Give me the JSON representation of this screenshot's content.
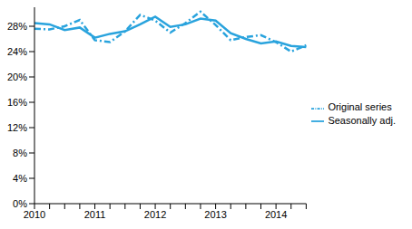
{
  "chart_data": {
    "type": "line",
    "categories": [
      "2010",
      null,
      null,
      null,
      "2011",
      null,
      null,
      null,
      "2012",
      null,
      null,
      null,
      "2013",
      null,
      null,
      null,
      "2014",
      null,
      null
    ],
    "series": [
      {
        "name": "Original series",
        "color": "#29a3dd",
        "line_style": "dashdot",
        "values": [
          27.6,
          27.5,
          28.0,
          29.0,
          25.8,
          25.5,
          27.2,
          29.8,
          28.9,
          27.0,
          28.5,
          30.3,
          28.2,
          25.8,
          26.3,
          26.6,
          25.5,
          24.0,
          25.0
        ]
      },
      {
        "name": "Seasonally adj.",
        "color": "#29a3dd",
        "line_style": "solid",
        "values": [
          28.5,
          28.3,
          27.4,
          27.8,
          26.2,
          26.8,
          27.2,
          28.3,
          29.5,
          27.9,
          28.3,
          29.2,
          28.9,
          26.9,
          26.0,
          25.3,
          25.6,
          24.9,
          24.7
        ]
      }
    ],
    "ylim": [
      0,
      31
    ],
    "yticks": [
      {
        "value": 0,
        "label": "0%"
      },
      {
        "value": 4,
        "label": "4%"
      },
      {
        "value": 8,
        "label": "8%"
      },
      {
        "value": 12,
        "label": "12%"
      },
      {
        "value": 16,
        "label": "16%"
      },
      {
        "value": 20,
        "label": "20%"
      },
      {
        "value": 24,
        "label": "24%"
      },
      {
        "value": 28,
        "label": "28%"
      }
    ],
    "grid": false,
    "legend": "right"
  }
}
